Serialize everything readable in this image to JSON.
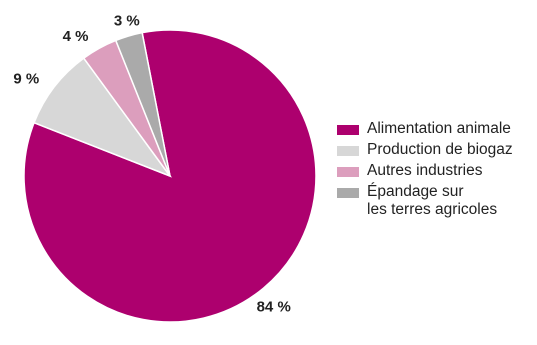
{
  "chart_data": {
    "type": "pie",
    "title": "",
    "slices": [
      {
        "label": "Alimentation animale",
        "value": 84,
        "value_label": "84 %",
        "color": "#ad006e"
      },
      {
        "label": "Production de biogaz",
        "value": 9,
        "value_label": "9 %",
        "color": "#d7d7d7"
      },
      {
        "label": "Autres industries",
        "value": 4,
        "value_label": "4 %",
        "color": "#dc9ebd"
      },
      {
        "label": "Épandage sur\nles terres agricoles",
        "value": 3,
        "value_label": "3 %",
        "color": "#aaaaaa"
      }
    ],
    "legend_position": "right"
  }
}
